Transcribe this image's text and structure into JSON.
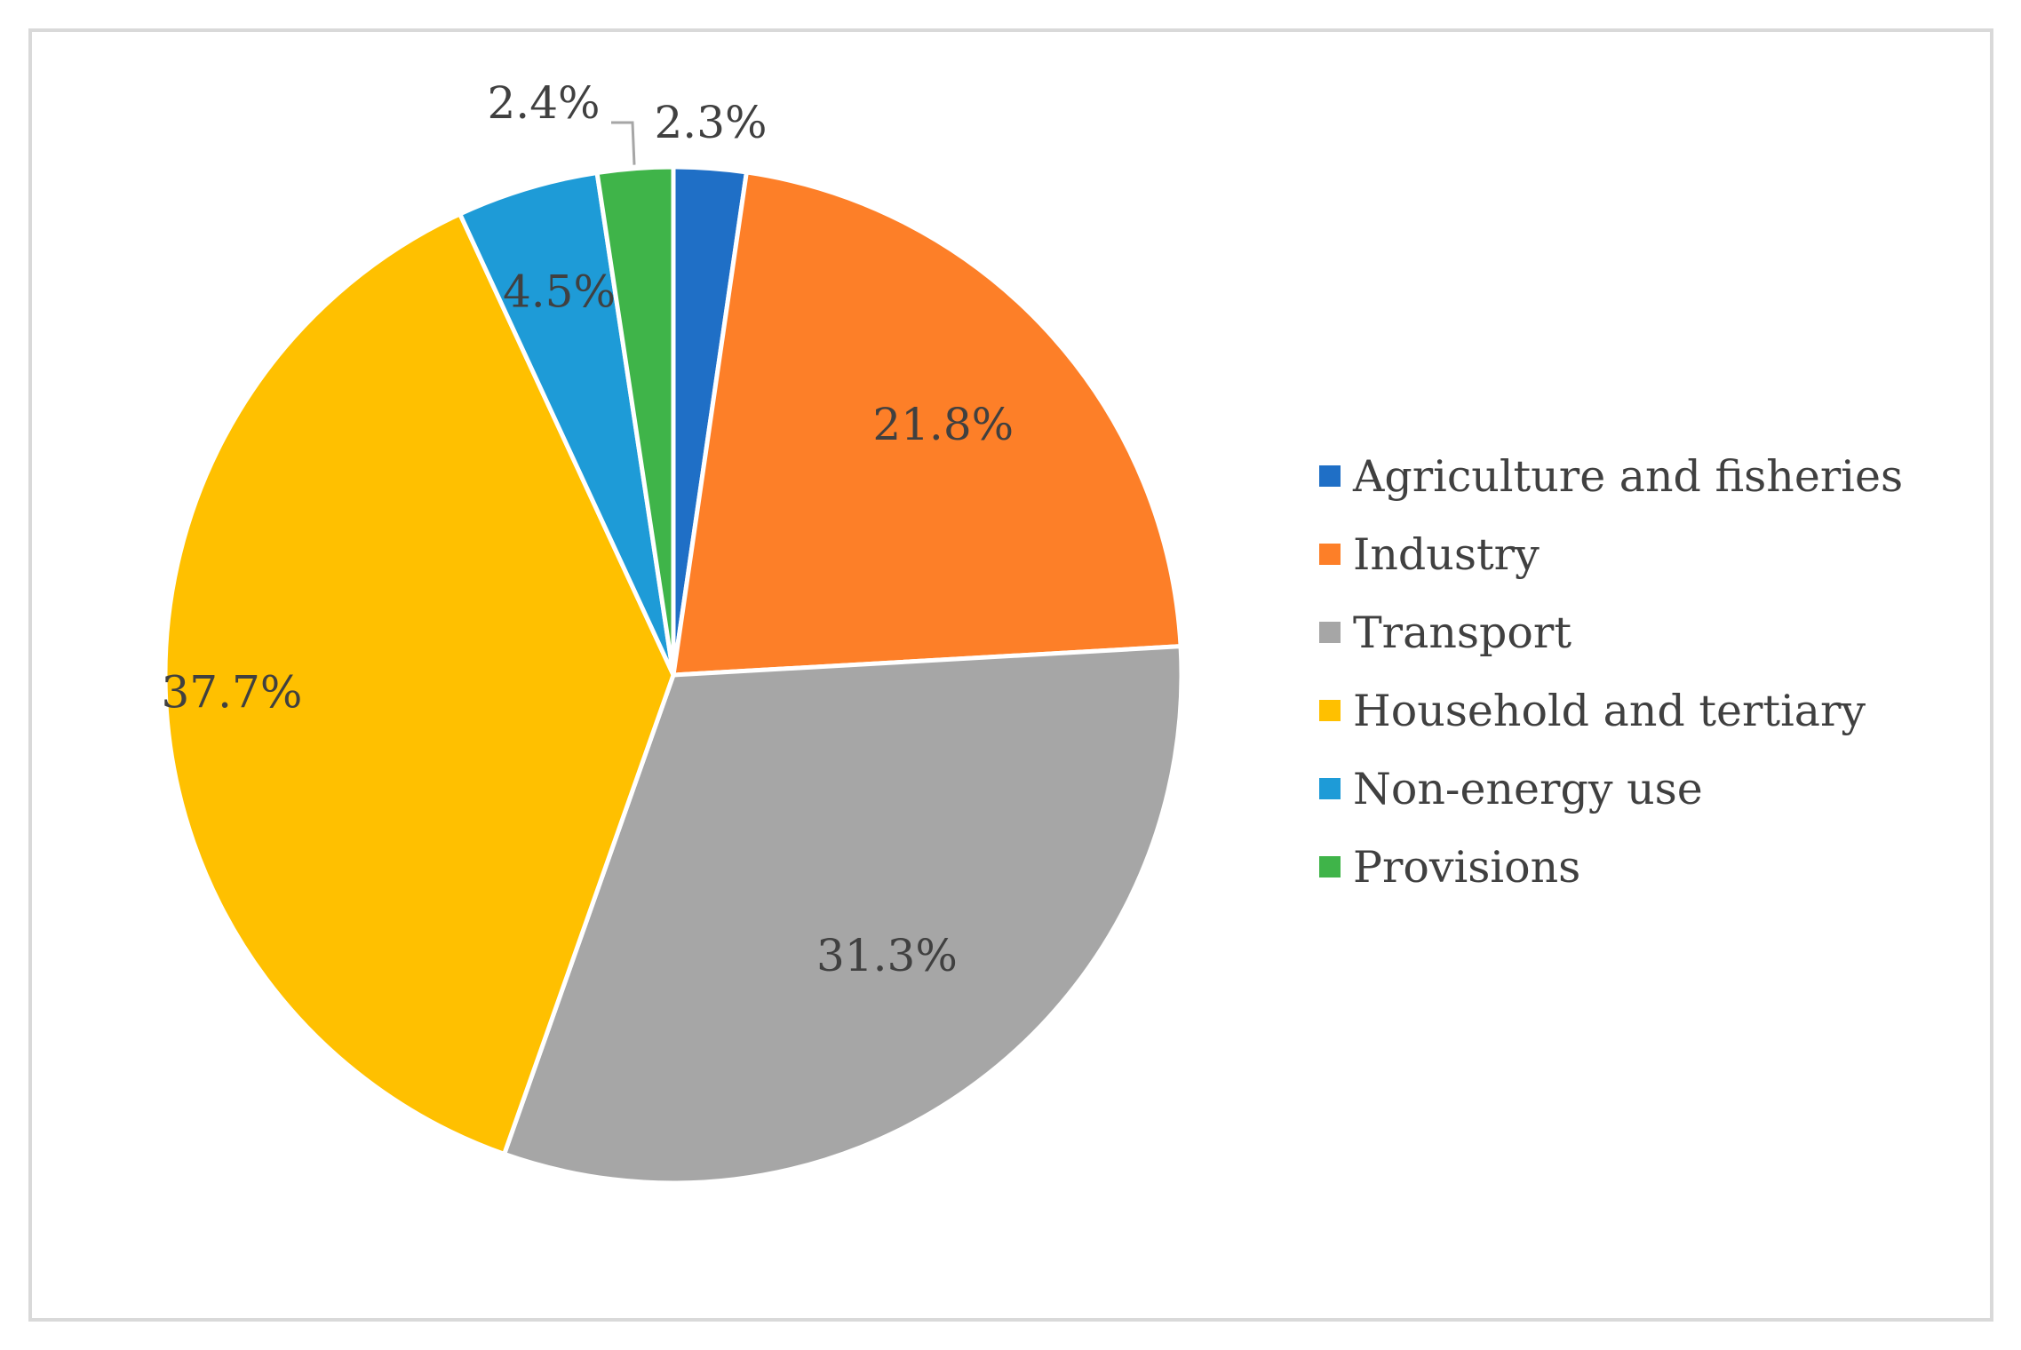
{
  "chart_data": {
    "type": "pie",
    "title": "",
    "categories": [
      "Agriculture and fisheries",
      "Industry",
      "Transport",
      "Household and tertiary",
      "Non-energy use",
      "Provisions"
    ],
    "values": [
      2.3,
      21.8,
      31.3,
      37.7,
      4.5,
      2.4
    ],
    "labels": [
      "2.3%",
      "21.8%",
      "31.3%",
      "37.7%",
      "4.5%",
      "2.4%"
    ],
    "colors": [
      "#1f6fc6",
      "#fd7f28",
      "#a6a6a6",
      "#ffc000",
      "#1e9bd7",
      "#3fb449"
    ],
    "legend_position": "right",
    "start_angle": "12 o'clock, clockwise"
  }
}
